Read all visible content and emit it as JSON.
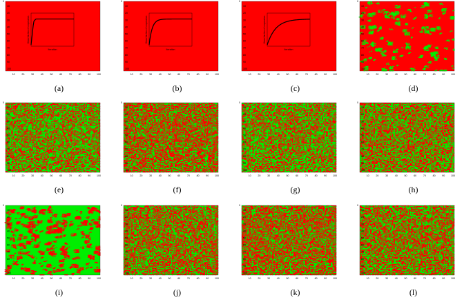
{
  "colors": {
    "red": "#ff0000",
    "green": "#00ee00",
    "black": "#000000"
  },
  "grid_axis": {
    "x_ticks": [
      "10",
      "20",
      "30",
      "40",
      "50",
      "60",
      "70",
      "80",
      "90",
      "100"
    ],
    "y_ticks": [
      "10",
      "20",
      "30",
      "40",
      "50",
      "60",
      "70",
      "80",
      "90",
      "100"
    ]
  },
  "panels": [
    {
      "caption": "(a)",
      "kind": "curve",
      "green_fraction": 0.0,
      "chart_data": {
        "type": "line",
        "xlabel": "Iteration",
        "ylabel": "Mean fraction of cooperators",
        "xlim": [
          0,
          100
        ],
        "ylim": [
          0,
          1
        ],
        "curve": "steep"
      }
    },
    {
      "caption": "(b)",
      "kind": "curve",
      "green_fraction": 0.0,
      "chart_data": {
        "type": "line",
        "xlabel": "Iteration",
        "ylabel": "Mean fraction of cooperators",
        "xlim": [
          0,
          100
        ],
        "ylim": [
          0,
          1
        ],
        "curve": "fast"
      }
    },
    {
      "caption": "(c)",
      "kind": "curve",
      "green_fraction": 0.0,
      "chart_data": {
        "type": "line",
        "xlabel": "Iteration",
        "ylabel": "Mean fraction of cooperators",
        "xlim": [
          0,
          100
        ],
        "ylim": [
          0,
          1
        ],
        "curve": "slow"
      }
    },
    {
      "caption": "(d)",
      "kind": "grid",
      "green_fraction": 0.18,
      "cluster": 3
    },
    {
      "caption": "(e)",
      "kind": "grid",
      "green_fraction": 0.62,
      "cluster": 1
    },
    {
      "caption": "(f)",
      "kind": "grid",
      "green_fraction": 0.5,
      "cluster": 1
    },
    {
      "caption": "(g)",
      "kind": "grid",
      "green_fraction": 0.6,
      "cluster": 1
    },
    {
      "caption": "(h)",
      "kind": "grid",
      "green_fraction": 0.45,
      "cluster": 1
    },
    {
      "caption": "(i)",
      "kind": "grid",
      "green_fraction": 0.65,
      "cluster": 3
    },
    {
      "caption": "(j)",
      "kind": "grid",
      "green_fraction": 0.55,
      "cluster": 1
    },
    {
      "caption": "(k)",
      "kind": "grid",
      "green_fraction": 0.5,
      "cluster": 1
    },
    {
      "caption": "(l)",
      "kind": "grid",
      "green_fraction": 0.55,
      "cluster": 1
    }
  ]
}
